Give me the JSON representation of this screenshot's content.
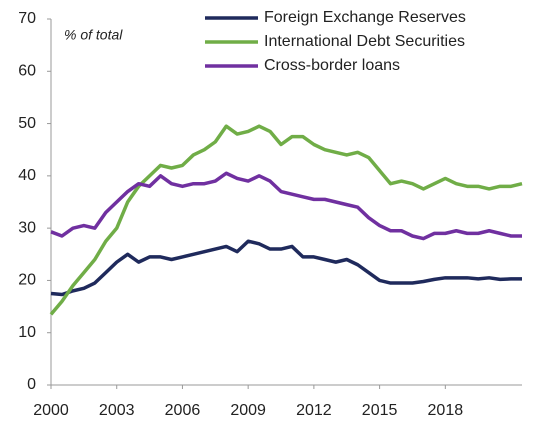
{
  "chart_data": {
    "type": "line",
    "annotation": "% of total",
    "x": [
      2000,
      2000.5,
      2001,
      2001.5,
      2002,
      2002.5,
      2003,
      2003.5,
      2004,
      2004.5,
      2005,
      2005.5,
      2006,
      2006.5,
      2007,
      2007.5,
      2008,
      2008.5,
      2009,
      2009.5,
      2010,
      2010.5,
      2011,
      2011.5,
      2012,
      2012.5,
      2013,
      2013.5,
      2014,
      2014.5,
      2015,
      2015.5,
      2016,
      2016.5,
      2017,
      2017.5,
      2018,
      2018.5,
      2019,
      2019.5,
      2020,
      2020.5,
      2021,
      2021.5
    ],
    "series": [
      {
        "name": "Foreign Exchange Reserves",
        "color": "#1f2a5c",
        "values": [
          17.5,
          17.3,
          18,
          18.5,
          19.5,
          21.5,
          23.5,
          25,
          23.5,
          24.5,
          24.5,
          24,
          24.5,
          25,
          25.5,
          26,
          26.5,
          25.5,
          27.5,
          27,
          26,
          26,
          26.5,
          24.5,
          24.5,
          24,
          23.5,
          24,
          23,
          21.5,
          20,
          19.5,
          19.5,
          19.5,
          19.8,
          20.2,
          20.5,
          20.5,
          20.5,
          20.3,
          20.5,
          20.2,
          20.3,
          20.3
        ]
      },
      {
        "name": "International Debt Securities",
        "color": "#70ad47",
        "values": [
          13.5,
          16,
          19,
          21.5,
          24,
          27.5,
          30,
          35,
          38,
          40,
          42,
          41.5,
          42,
          44,
          45,
          46.5,
          49.5,
          48,
          48.5,
          49.5,
          48.5,
          46,
          47.5,
          47.5,
          46,
          45,
          44.5,
          44,
          44.5,
          43.5,
          41,
          38.5,
          39,
          38.5,
          37.5,
          38.5,
          39.5,
          38.5,
          38,
          38,
          37.5,
          38,
          38,
          38.5
        ]
      },
      {
        "name": "Cross-border loans",
        "color": "#7030a0",
        "values": [
          29.3,
          28.5,
          30,
          30.5,
          30,
          33,
          35,
          37,
          38.5,
          38,
          40,
          38.5,
          38,
          38.5,
          38.5,
          39,
          40.5,
          39.5,
          39,
          40,
          39,
          37,
          36.5,
          36,
          35.5,
          35.5,
          35,
          34.5,
          34,
          32,
          30.5,
          29.5,
          29.5,
          28.5,
          28,
          29,
          29,
          29.5,
          29,
          29,
          29.5,
          29,
          28.5,
          28.5
        ]
      }
    ],
    "xlim": [
      2000,
      2021.5
    ],
    "xticks": [
      2000,
      2003,
      2006,
      2009,
      2012,
      2015,
      2018
    ],
    "ylim": [
      0,
      70
    ],
    "yticks": [
      0,
      10,
      20,
      30,
      40,
      50,
      60,
      70
    ]
  }
}
